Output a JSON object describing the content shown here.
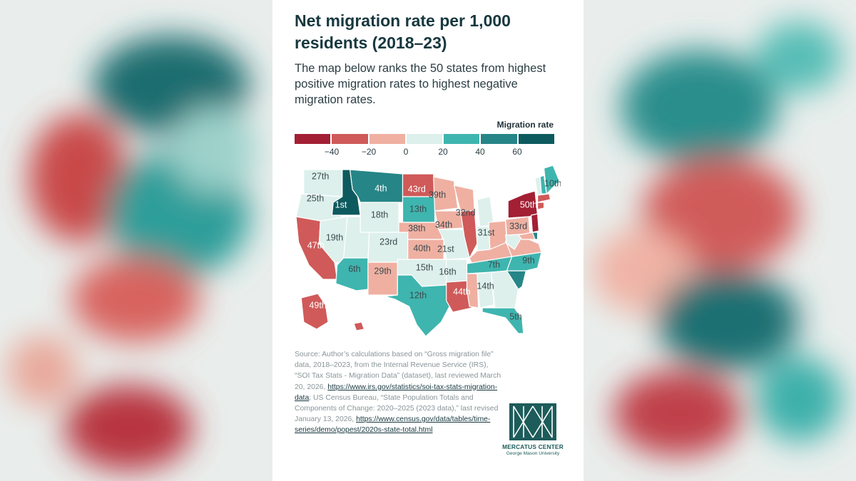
{
  "title": "Net migration rate per 1,000 residents (2018–23)",
  "subtitle": "The map below ranks the 50 states from highest positive migration rates to highest negative migration rates.",
  "legend": {
    "title": "Migration rate",
    "ticks": [
      "−40",
      "−20",
      "0",
      "20",
      "40",
      "60"
    ],
    "colors": [
      "#a31f34",
      "#cf5a59",
      "#efb0a2",
      "#ddf0ec",
      "#3fb5af",
      "#268587",
      "#0d5a5e"
    ]
  },
  "map": {
    "states": [
      {
        "abbr": "WA",
        "rank": "27th",
        "color": "#ddf0ec"
      },
      {
        "abbr": "OR",
        "rank": "25th",
        "color": "#ddf0ec"
      },
      {
        "abbr": "CA",
        "rank": "47th",
        "color": "#cf5a59"
      },
      {
        "abbr": "ID",
        "rank": "1st",
        "color": "#0d5a5e"
      },
      {
        "abbr": "NV",
        "rank": "19th",
        "color": "#ddf0ec"
      },
      {
        "abbr": "MT",
        "rank": "4th",
        "color": "#268587"
      },
      {
        "abbr": "WY",
        "rank": "18th",
        "color": "#ddf0ec"
      },
      {
        "abbr": "UT",
        "rank": "",
        "color": "#ddf0ec"
      },
      {
        "abbr": "AZ",
        "rank": "6th",
        "color": "#3fb5af"
      },
      {
        "abbr": "CO",
        "rank": "23rd",
        "color": "#ddf0ec"
      },
      {
        "abbr": "NM",
        "rank": "29th",
        "color": "#efb0a2"
      },
      {
        "abbr": "ND",
        "rank": "43rd",
        "color": "#cf5a59"
      },
      {
        "abbr": "SD",
        "rank": "13th",
        "color": "#3fb5af"
      },
      {
        "abbr": "NE",
        "rank": "38th",
        "color": "#efb0a2"
      },
      {
        "abbr": "KS",
        "rank": "40th",
        "color": "#efb0a2"
      },
      {
        "abbr": "OK",
        "rank": "15th",
        "color": "#ddf0ec"
      },
      {
        "abbr": "TX",
        "rank": "12th",
        "color": "#3fb5af"
      },
      {
        "abbr": "MN",
        "rank": "39th",
        "color": "#efb0a2"
      },
      {
        "abbr": "IA",
        "rank": "34th",
        "color": "#efb0a2"
      },
      {
        "abbr": "MO",
        "rank": "21st",
        "color": "#ddf0ec"
      },
      {
        "abbr": "AR",
        "rank": "16th",
        "color": "#ddf0ec"
      },
      {
        "abbr": "LA",
        "rank": "44th",
        "color": "#cf5a59"
      },
      {
        "abbr": "WI",
        "rank": "32nd",
        "color": "#efb0a2"
      },
      {
        "abbr": "IL",
        "rank": "",
        "color": "#cf5a59"
      },
      {
        "abbr": "MI",
        "rank": "",
        "color": "#ddf0ec"
      },
      {
        "abbr": "IN",
        "rank": "31st",
        "color": "#ddf0ec"
      },
      {
        "abbr": "OH",
        "rank": "",
        "color": "#efb0a2"
      },
      {
        "abbr": "KY",
        "rank": "",
        "color": "#efb0a2"
      },
      {
        "abbr": "TN",
        "rank": "7th",
        "color": "#3fb5af"
      },
      {
        "abbr": "MS",
        "rank": "",
        "color": "#efb0a2"
      },
      {
        "abbr": "AL",
        "rank": "14th",
        "color": "#ddf0ec"
      },
      {
        "abbr": "GA",
        "rank": "",
        "color": "#ddf0ec"
      },
      {
        "abbr": "FL",
        "rank": "5th",
        "color": "#3fb5af"
      },
      {
        "abbr": "SC",
        "rank": "",
        "color": "#268587"
      },
      {
        "abbr": "NC",
        "rank": "9th",
        "color": "#3fb5af"
      },
      {
        "abbr": "VA",
        "rank": "",
        "color": "#efb0a2"
      },
      {
        "abbr": "WV",
        "rank": "",
        "color": "#ddf0ec"
      },
      {
        "abbr": "PA",
        "rank": "33rd",
        "color": "#efb0a2"
      },
      {
        "abbr": "NY",
        "rank": "50th",
        "color": "#a31f34"
      },
      {
        "abbr": "VT",
        "rank": "",
        "color": "#ddf0ec"
      },
      {
        "abbr": "NH",
        "rank": "",
        "color": "#3fb5af"
      },
      {
        "abbr": "ME",
        "rank": "10th",
        "color": "#3fb5af"
      },
      {
        "abbr": "MA",
        "rank": "",
        "color": "#cf5a59"
      },
      {
        "abbr": "CT",
        "rank": "",
        "color": "#cf5a59"
      },
      {
        "abbr": "NJ",
        "rank": "",
        "color": "#a31f34"
      },
      {
        "abbr": "DE",
        "rank": "",
        "color": "#268587"
      },
      {
        "abbr": "MD",
        "rank": "",
        "color": "#efb0a2"
      },
      {
        "abbr": "AK",
        "rank": "49th",
        "color": "#cf5a59"
      },
      {
        "abbr": "HI",
        "rank": "",
        "color": "#cf5a59"
      }
    ]
  },
  "source": {
    "text1": "Source: Author’s calculations based on “Gross migration file” data, 2018–2023, from the Internal Revenue Service (IRS), “SOI Tax Stats - Migration Data” (dataset), last reviewed March 20, 2026, ",
    "link1": "https://www.irs.gov/statistics/soi-tax-stats-migration-data",
    "text2": "; US Census Bureau, “State Population Totals and Components of Change: 2020–2025 (2023 data),” last revised January 13, 2026, ",
    "link2": "https://www.census.gov/data/tables/time-series/demo/popest/2020s-state-total.html"
  },
  "logo": {
    "name": "MERCATUS CENTER",
    "sub": "George Mason University"
  }
}
